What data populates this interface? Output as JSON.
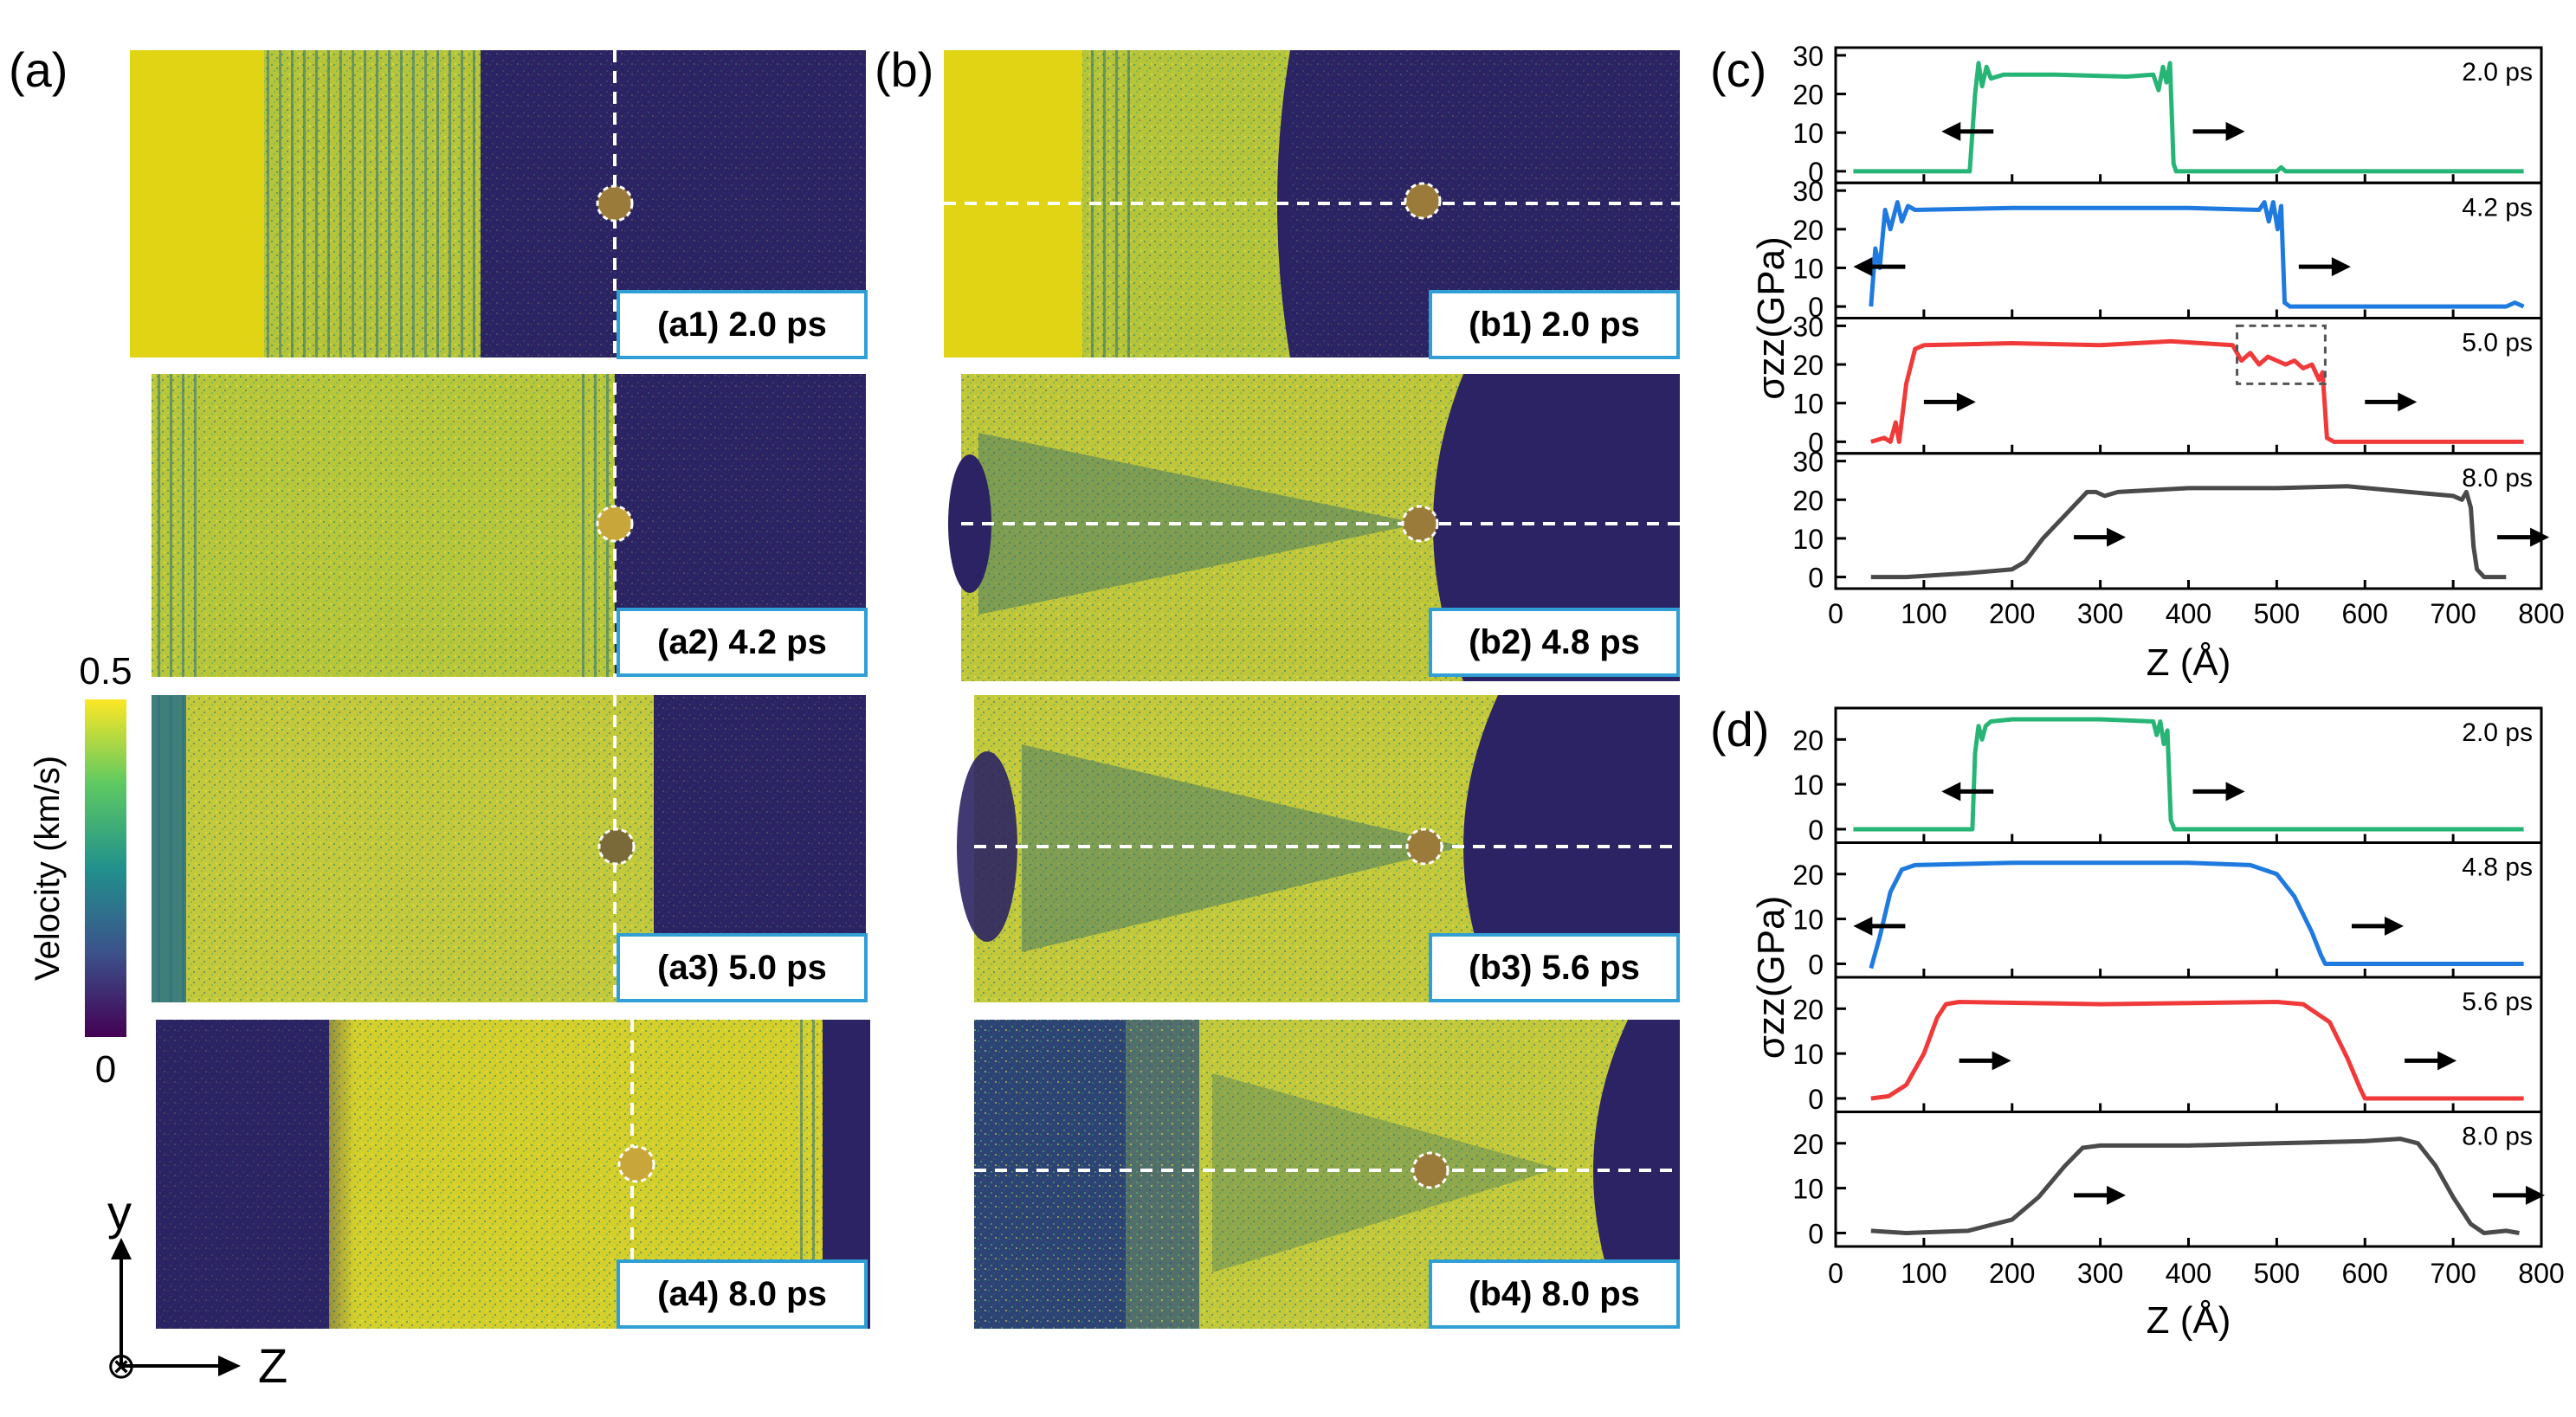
{
  "panel_labels": {
    "a": "(a)",
    "b": "(b)",
    "c": "(c)",
    "d": "(d)"
  },
  "snapshots": [
    {
      "id": "a1",
      "label": "(a1) 2.0 ps"
    },
    {
      "id": "a2",
      "label": "(a2) 4.2 ps"
    },
    {
      "id": "a3",
      "label": "(a3) 5.0 ps"
    },
    {
      "id": "a4",
      "label": "(a4) 8.0 ps"
    },
    {
      "id": "b1",
      "label": "(b1) 2.0 ps"
    },
    {
      "id": "b2",
      "label": "(b2) 4.8 ps"
    },
    {
      "id": "b3",
      "label": "(b3) 5.6 ps"
    },
    {
      "id": "b4",
      "label": "(b4) 8.0 ps"
    }
  ],
  "colorbar": {
    "title": "Velocity (km/s)",
    "max_label": "0.5",
    "min_label": "0",
    "colors": [
      "#fde725",
      "#5ec962",
      "#21918c",
      "#3b528b",
      "#440154"
    ]
  },
  "axes_legend": {
    "y": "y",
    "z": "Z",
    "out_symbol": "⊗"
  },
  "colors": {
    "yellow": "#e1d414",
    "navy": "#2b2363",
    "green": "#27b576",
    "blue": "#1f7ae0",
    "red": "#f03a3a",
    "gray": "#4a4a4a",
    "label_border": "#2f9fd6"
  },
  "chart_data": [
    {
      "type": "line",
      "panel": "(c)",
      "ylabel": "σzz(GPa)",
      "xlabel": "Z (Å)",
      "xlim": [
        0,
        800
      ],
      "xticks": [
        "0",
        "100",
        "200",
        "300",
        "400",
        "500",
        "600",
        "700",
        "800"
      ],
      "ylim": [
        -3,
        32
      ],
      "yticks": [
        "0",
        "10",
        "20",
        "30"
      ],
      "series": [
        {
          "name": "2.0 ps",
          "color": "#27b576",
          "arrows": [
            "left@120",
            "right@405"
          ],
          "points": [
            [
              20,
              0
            ],
            [
              120,
              0
            ],
            [
              152,
              0
            ],
            [
              158,
              20
            ],
            [
              162,
              28
            ],
            [
              166,
              22
            ],
            [
              171,
              27
            ],
            [
              176,
              24
            ],
            [
              190,
              25
            ],
            [
              250,
              25
            ],
            [
              330,
              24.5
            ],
            [
              360,
              25
            ],
            [
              366,
              21
            ],
            [
              371,
              27
            ],
            [
              375,
              23
            ],
            [
              379,
              28
            ],
            [
              383,
              2
            ],
            [
              386,
              0
            ],
            [
              500,
              0
            ],
            [
              505,
              1
            ],
            [
              510,
              0
            ],
            [
              780,
              0
            ]
          ]
        },
        {
          "name": "4.2 ps",
          "color": "#1f7ae0",
          "arrows": [
            "left@20",
            "right@525"
          ],
          "points": [
            [
              40,
              0
            ],
            [
              45,
              15
            ],
            [
              50,
              10
            ],
            [
              56,
              25
            ],
            [
              62,
              20
            ],
            [
              70,
              27
            ],
            [
              75,
              22
            ],
            [
              82,
              26
            ],
            [
              90,
              25
            ],
            [
              200,
              25.5
            ],
            [
              400,
              25.5
            ],
            [
              480,
              25
            ],
            [
              486,
              27
            ],
            [
              491,
              22
            ],
            [
              496,
              27
            ],
            [
              501,
              20
            ],
            [
              505,
              26
            ],
            [
              509,
              1
            ],
            [
              515,
              0
            ],
            [
              760,
              0
            ],
            [
              770,
              1
            ],
            [
              780,
              0
            ]
          ]
        },
        {
          "name": "5.0 ps",
          "color": "#f03a3a",
          "arrows": [
            "right@100",
            "right@600"
          ],
          "points": [
            [
              40,
              0
            ],
            [
              55,
              1
            ],
            [
              62,
              0
            ],
            [
              68,
              5
            ],
            [
              72,
              0
            ],
            [
              80,
              15
            ],
            [
              90,
              24
            ],
            [
              100,
              25
            ],
            [
              200,
              25.5
            ],
            [
              300,
              25
            ],
            [
              380,
              26
            ],
            [
              450,
              25
            ],
            [
              460,
              21
            ],
            [
              470,
              23
            ],
            [
              480,
              20
            ],
            [
              490,
              22
            ],
            [
              500,
              21
            ],
            [
              510,
              20
            ],
            [
              520,
              21
            ],
            [
              530,
              19
            ],
            [
              540,
              20
            ],
            [
              548,
              16
            ],
            [
              552,
              18
            ],
            [
              557,
              1
            ],
            [
              565,
              0
            ],
            [
              780,
              0
            ]
          ]
        },
        {
          "name": "8.0 ps",
          "color": "#4a4a4a",
          "arrows": [
            "right@270",
            "right@750"
          ],
          "points": [
            [
              40,
              0
            ],
            [
              80,
              0
            ],
            [
              150,
              1
            ],
            [
              200,
              2
            ],
            [
              215,
              4
            ],
            [
              235,
              10
            ],
            [
              260,
              16
            ],
            [
              285,
              22
            ],
            [
              295,
              22
            ],
            [
              305,
              21
            ],
            [
              320,
              22
            ],
            [
              400,
              23
            ],
            [
              500,
              23
            ],
            [
              580,
              23.5
            ],
            [
              650,
              22
            ],
            [
              700,
              21
            ],
            [
              710,
              20
            ],
            [
              715,
              22
            ],
            [
              720,
              18
            ],
            [
              723,
              8
            ],
            [
              727,
              2
            ],
            [
              735,
              0
            ],
            [
              760,
              0
            ]
          ]
        }
      ],
      "annotation": "dashed box near Z 455–555 on 5.0 ps curve"
    },
    {
      "type": "line",
      "panel": "(d)",
      "ylabel": "σzz(GPa)",
      "xlabel": "Z (Å)",
      "xlim": [
        0,
        800
      ],
      "xticks": [
        "0",
        "100",
        "200",
        "300",
        "400",
        "500",
        "600",
        "700",
        "800"
      ],
      "ylim": [
        -3,
        27
      ],
      "yticks": [
        "0",
        "10",
        "20"
      ],
      "series": [
        {
          "name": "2.0 ps",
          "color": "#27b576",
          "arrows": [
            "left@120",
            "right@405"
          ],
          "points": [
            [
              20,
              0
            ],
            [
              150,
              0
            ],
            [
              155,
              0
            ],
            [
              158,
              17
            ],
            [
              162,
              23
            ],
            [
              166,
              20
            ],
            [
              170,
              23
            ],
            [
              176,
              24
            ],
            [
              200,
              24.5
            ],
            [
              300,
              24.5
            ],
            [
              360,
              24
            ],
            [
              364,
              21
            ],
            [
              368,
              24
            ],
            [
              372,
              19
            ],
            [
              376,
              22
            ],
            [
              380,
              2
            ],
            [
              384,
              0
            ],
            [
              780,
              0
            ]
          ]
        },
        {
          "name": "4.8 ps",
          "color": "#1f7ae0",
          "arrows": [
            "left@20",
            "right@585"
          ],
          "points": [
            [
              40,
              -1
            ],
            [
              50,
              6
            ],
            [
              62,
              16
            ],
            [
              75,
              21
            ],
            [
              90,
              22
            ],
            [
              200,
              22.5
            ],
            [
              400,
              22.5
            ],
            [
              470,
              22
            ],
            [
              500,
              20
            ],
            [
              520,
              15
            ],
            [
              540,
              7
            ],
            [
              550,
              2
            ],
            [
              555,
              0
            ],
            [
              780,
              0
            ]
          ]
        },
        {
          "name": "5.6 ps",
          "color": "#f03a3a",
          "arrows": [
            "right@140",
            "right@645"
          ],
          "points": [
            [
              40,
              0
            ],
            [
              60,
              0.5
            ],
            [
              80,
              3
            ],
            [
              100,
              10
            ],
            [
              115,
              18
            ],
            [
              125,
              21
            ],
            [
              140,
              21.5
            ],
            [
              300,
              21
            ],
            [
              500,
              21.5
            ],
            [
              530,
              21
            ],
            [
              560,
              17
            ],
            [
              580,
              9
            ],
            [
              595,
              2
            ],
            [
              600,
              0
            ],
            [
              780,
              0
            ]
          ]
        },
        {
          "name": "8.0 ps",
          "color": "#4a4a4a",
          "arrows": [
            "right@270",
            "right@745"
          ],
          "points": [
            [
              40,
              0.5
            ],
            [
              80,
              0
            ],
            [
              150,
              0.5
            ],
            [
              200,
              3
            ],
            [
              230,
              8
            ],
            [
              260,
              15
            ],
            [
              280,
              19
            ],
            [
              300,
              19.5
            ],
            [
              400,
              19.5
            ],
            [
              500,
              20
            ],
            [
              600,
              20.5
            ],
            [
              640,
              21
            ],
            [
              660,
              20
            ],
            [
              680,
              15
            ],
            [
              700,
              8
            ],
            [
              720,
              2
            ],
            [
              735,
              0
            ],
            [
              760,
              0.5
            ],
            [
              775,
              0
            ]
          ]
        }
      ]
    }
  ]
}
